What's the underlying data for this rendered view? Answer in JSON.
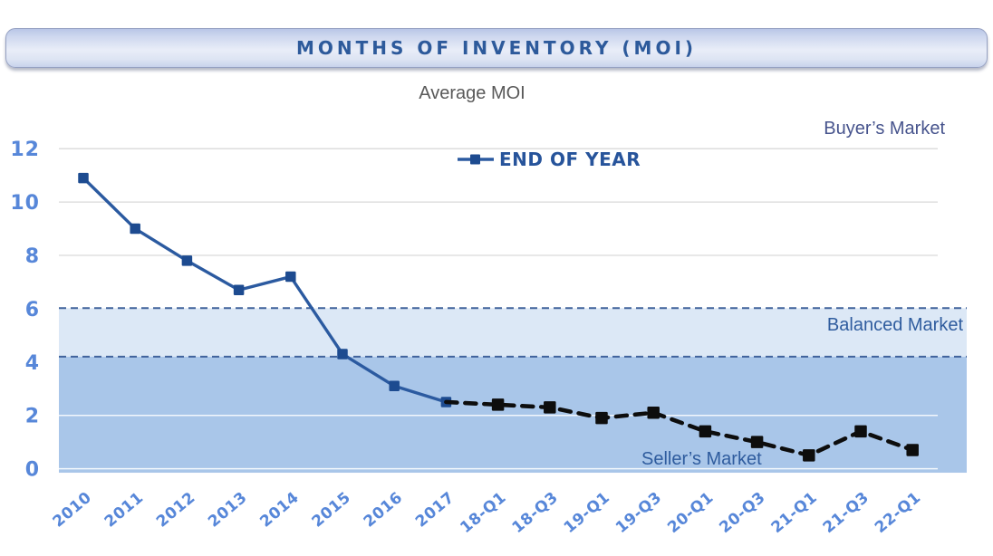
{
  "banner": {
    "title": "MONTHS OF INVENTORY (MOI)"
  },
  "subtitle": "Average MOI",
  "legend": {
    "label": "END OF YEAR"
  },
  "annotations": {
    "buyers_market": "Buyer’s Market",
    "balanced_market": "Balanced Market",
    "sellers_market": "Seller’s Market"
  },
  "colors": {
    "banner_text": "#2d5a9b",
    "tick_labels": "#5787d9",
    "solid_line": "#2b5aa0",
    "solid_marker": "#1d4b90",
    "dashed_line": "#0d0d0d",
    "band_border": "#41639c",
    "gridline": "#d9d9d9",
    "balanced_band": "#dce8f6",
    "seller_band": "#a9c6e9"
  },
  "chart_data": {
    "type": "line",
    "title": "Average MOI",
    "categories": [
      "2010",
      "2011",
      "2012",
      "2013",
      "2014",
      "2015",
      "2016",
      "2017",
      "18-Q1",
      "18-Q3",
      "19-Q1",
      "19-Q3",
      "20-Q1",
      "20-Q3",
      "21-Q1",
      "21-Q3",
      "22-Q1"
    ],
    "series": [
      {
        "id": "end-of-year",
        "name": "END OF YEAR",
        "style": "solid",
        "color": "#2b5aa0",
        "marker_color": "#1d4b90",
        "values": [
          10.9,
          9.0,
          7.8,
          6.7,
          7.2,
          4.3,
          3.1,
          2.5,
          null,
          null,
          null,
          null,
          null,
          null,
          null,
          null,
          null
        ]
      },
      {
        "id": "quarterly-dashed",
        "name": "",
        "style": "dashed",
        "color": "#0d0d0d",
        "marker_color": "#0d0d0d",
        "values": [
          null,
          null,
          null,
          null,
          null,
          null,
          null,
          2.5,
          2.4,
          2.3,
          1.9,
          2.1,
          1.4,
          1.0,
          0.5,
          1.4,
          0.7
        ]
      }
    ],
    "yticks": [
      0,
      2,
      4,
      6,
      8,
      10,
      12
    ],
    "ylim": [
      0,
      12
    ],
    "grid": "horizontal",
    "legend_position": "top-center",
    "gridlines_at": [
      8,
      10,
      12
    ],
    "inner_white_lines": [
      0,
      2
    ],
    "bands": [
      {
        "label": "Balanced Market",
        "from": 4.2,
        "to": 6.02,
        "color": "#dce8f6",
        "dashed_borders": true
      },
      {
        "label": "Seller’s Market",
        "from": -0.15,
        "to": 4.2,
        "color": "#a9c6e9",
        "dashed_borders": false
      }
    ]
  }
}
